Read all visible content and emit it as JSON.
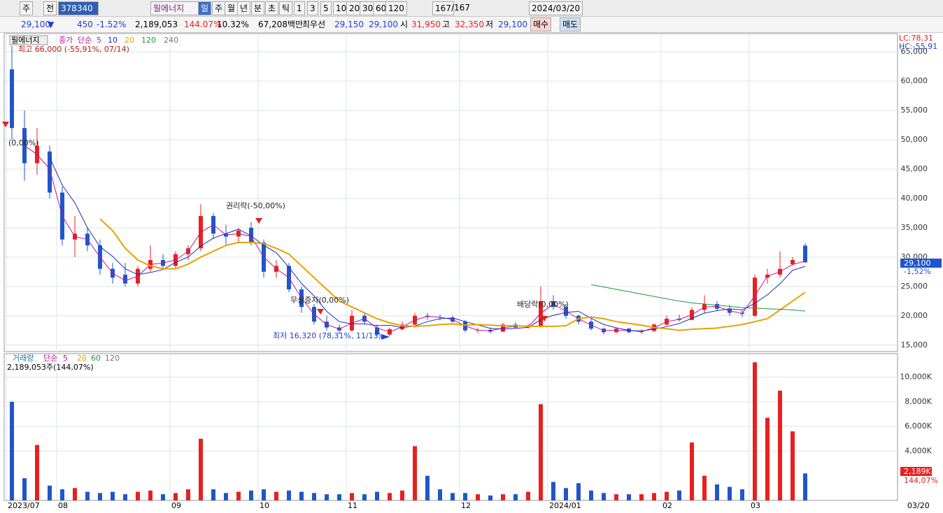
{
  "toolbar": {
    "row1": [
      "주",
      "전",
      "378340",
      "필에너지",
      "일",
      "주",
      "월",
      "년",
      "분",
      "초",
      "틱",
      "1",
      "3",
      "5",
      "10",
      "20",
      "30",
      "60",
      "120",
      "167",
      "/167",
      "2024/03/20"
    ],
    "row2": [
      "29,100",
      "▼",
      "450",
      "-1.52%",
      "2,189,053",
      "144.07%",
      "10.32%",
      "67,208백만",
      "최우선",
      "29,150",
      "29,100",
      "시",
      "31,950",
      "고",
      "32,350",
      "저",
      "29,100"
    ],
    "buttons": [
      "매수",
      "매도"
    ]
  },
  "chart_data": [
    {
      "type": "candlestick",
      "name": "필에너지",
      "legend_prefix": [
        "종가",
        "단순"
      ],
      "legend_extra": "240",
      "categories": [
        "2023/07",
        null,
        null,
        null,
        "08",
        null,
        null,
        null,
        null,
        null,
        null,
        null,
        null,
        "09",
        null,
        null,
        null,
        null,
        null,
        null,
        "10",
        null,
        null,
        null,
        null,
        null,
        null,
        "11",
        null,
        null,
        null,
        null,
        null,
        null,
        null,
        null,
        "12",
        null,
        null,
        null,
        null,
        null,
        null,
        "2024/01",
        null,
        null,
        null,
        null,
        null,
        null,
        null,
        null,
        "02",
        null,
        null,
        null,
        null,
        null,
        null,
        "03",
        null,
        null,
        null,
        null
      ],
      "cursor_date": "03/20",
      "open": [
        62000,
        52000,
        46000,
        48000,
        41000,
        33000,
        34000,
        32000,
        28000,
        27000,
        25500,
        28000,
        29500,
        28500,
        30500,
        31500,
        37000,
        34000,
        33500,
        35000,
        32500,
        27500,
        28500,
        24500,
        21500,
        19000,
        18000,
        17500,
        20000,
        18000,
        16800,
        17700,
        18500,
        20000,
        19800,
        19700,
        19000,
        17500,
        17600,
        17300,
        18500,
        18000,
        18300,
        22500,
        21500,
        20000,
        19000,
        17800,
        17200,
        17800,
        17200,
        17400,
        18500,
        19500,
        19300,
        21000,
        22000,
        21200,
        20500,
        20000,
        26500,
        27000,
        28800,
        31950
      ],
      "high": [
        66000,
        55000,
        52000,
        49000,
        42000,
        37000,
        35000,
        33000,
        29000,
        29000,
        28500,
        32000,
        30500,
        31000,
        32000,
        39000,
        37500,
        35500,
        35000,
        36000,
        33000,
        29500,
        29000,
        25000,
        22000,
        20000,
        18500,
        21000,
        20500,
        18500,
        18000,
        19000,
        20500,
        20500,
        20200,
        20000,
        19300,
        17900,
        18000,
        18800,
        18900,
        18600,
        25000,
        23500,
        22000,
        20200,
        19500,
        18000,
        18000,
        18000,
        17700,
        18700,
        20000,
        20200,
        21500,
        23500,
        22500,
        21800,
        21000,
        27000,
        28000,
        31000,
        30000,
        32350
      ],
      "low": [
        50000,
        43000,
        44000,
        40000,
        32000,
        30000,
        31000,
        27000,
        25500,
        25000,
        25000,
        27500,
        28000,
        28000,
        29500,
        31000,
        33000,
        32000,
        32500,
        32000,
        26500,
        26500,
        24000,
        20500,
        18500,
        17500,
        16900,
        17300,
        18500,
        16320,
        16500,
        17500,
        18000,
        19300,
        19200,
        18800,
        17200,
        17100,
        17000,
        17200,
        17800,
        17800,
        18000,
        21000,
        19500,
        18500,
        17500,
        16800,
        17000,
        17000,
        16900,
        17300,
        18300,
        19000,
        19200,
        20500,
        20800,
        20000,
        19800,
        19800,
        25500,
        26500,
        28500,
        29100
      ],
      "close": [
        52000,
        46000,
        49000,
        41000,
        33000,
        34000,
        32000,
        28000,
        26500,
        25500,
        28000,
        29500,
        28500,
        30500,
        31500,
        37000,
        34000,
        33500,
        34500,
        32500,
        27500,
        28500,
        24500,
        21500,
        19000,
        18000,
        17500,
        20000,
        19000,
        16800,
        17700,
        18500,
        20000,
        19800,
        19700,
        19000,
        17500,
        17600,
        17300,
        18500,
        18000,
        18300,
        22500,
        21500,
        20000,
        19000,
        17800,
        17200,
        17800,
        17200,
        17400,
        18500,
        19500,
        19300,
        21000,
        22000,
        21200,
        20500,
        20300,
        26500,
        27000,
        28000,
        29500,
        29100
      ],
      "up_color": "#e8201e",
      "down_color": "#1f56c9",
      "ma_series": [
        {
          "name": "5",
          "color": "#c0159a",
          "values": [
            null,
            49000,
            47500,
            45000,
            37000,
            33500,
            33000,
            30000,
            27250,
            26000,
            26750,
            28750,
            29000,
            29500,
            31000,
            34250,
            35500,
            33750,
            34000,
            33500,
            30000,
            28000,
            26500,
            23000,
            20250,
            18500,
            17750,
            18750,
            19500,
            17900,
            17250,
            18100,
            19250,
            19900,
            19750,
            19350,
            18250,
            17550,
            17450,
            17900,
            18250,
            18150,
            20400,
            22000,
            20750,
            19500,
            18400,
            17500,
            17500,
            17500,
            17300,
            17950,
            19000,
            19400,
            20150,
            21500,
            21600,
            20850,
            20400,
            23400,
            26750,
            27500,
            28750,
            29300
          ]
        },
        {
          "name": "10",
          "color": "#1c2fb8",
          "values": [
            null,
            null,
            null,
            47000,
            42250,
            39250,
            35000,
            31750,
            30125,
            28000,
            27000,
            27375,
            27875,
            29125,
            30000,
            31875,
            33250,
            34000,
            34750,
            33625,
            32000,
            30750,
            28250,
            25500,
            23375,
            20750,
            19000,
            18625,
            18625,
            18325,
            18375,
            18000,
            18250,
            19000,
            19500,
            19625,
            19000,
            18450,
            17850,
            17725,
            17850,
            18025,
            19325,
            20075,
            20575,
            20750,
            19575,
            18500,
            17950,
            17500,
            17400,
            17725,
            18150,
            18675,
            19575,
            20450,
            20875,
            21175,
            21000,
            22125,
            23575,
            25450,
            27750,
            28400
          ]
        },
        {
          "name": "20",
          "color": "#e8a200",
          "values": [
            null,
            null,
            null,
            null,
            null,
            null,
            null,
            36500,
            34500,
            31500,
            29500,
            28500,
            28000,
            28000,
            28800,
            30000,
            31000,
            32000,
            32500,
            32500,
            32300,
            31500,
            30500,
            28500,
            26500,
            24500,
            22500,
            21500,
            20500,
            19500,
            18800,
            18300,
            18200,
            18300,
            18500,
            18600,
            18400,
            18500,
            18400,
            18300,
            18300,
            18200,
            18200,
            18200,
            18300,
            19500,
            19800,
            19500,
            19000,
            18700,
            18400,
            18000,
            17800,
            17500,
            17700,
            17800,
            17900,
            18200,
            18500,
            19000,
            19500,
            21000,
            22500,
            24000
          ]
        },
        {
          "name": "120",
          "color": "#1a9a3a",
          "values": [
            null,
            null,
            null,
            null,
            null,
            null,
            null,
            null,
            null,
            null,
            null,
            null,
            null,
            null,
            null,
            null,
            null,
            null,
            null,
            null,
            null,
            null,
            null,
            null,
            null,
            null,
            null,
            null,
            null,
            null,
            null,
            null,
            null,
            null,
            null,
            null,
            null,
            null,
            null,
            null,
            null,
            null,
            null,
            null,
            null,
            null,
            25300,
            24900,
            24500,
            24100,
            23700,
            23300,
            22900,
            22500,
            22200,
            22000,
            21800,
            21600,
            21400,
            21300,
            21200,
            21100,
            21000,
            20800
          ]
        }
      ],
      "ylim": [
        13900,
        68100
      ],
      "yticks": [
        {
          "value": 15000,
          "label": "15,000"
        },
        {
          "value": 20000,
          "label": "20,000"
        },
        {
          "value": 25000,
          "label": "25,000"
        },
        {
          "value": 30000,
          "label": "30,000"
        },
        {
          "value": 35000,
          "label": "35,000"
        },
        {
          "value": 40000,
          "label": "40,000"
        },
        {
          "value": 45000,
          "label": "45,000"
        },
        {
          "value": 50000,
          "label": "50,000"
        },
        {
          "value": 55000,
          "label": "55,000"
        },
        {
          "value": 60000,
          "label": "60,000"
        },
        {
          "value": 65000,
          "label": "65,000"
        }
      ],
      "high_label": "최고 66,000 (-55,91%, 07/14)",
      "low_label": "최저 16,320 (78,31%, 11/13)",
      "annotations": [
        "권리락(-50,00%)",
        "무상증자(0,00%)",
        "배당락(0,00%)",
        "(0,00%)"
      ],
      "lc": "LC:78,31",
      "hc": "HC:-55,91",
      "last_price": {
        "value": 29100,
        "label": "29,100"
      },
      "last_change": "-1,52%"
    },
    {
      "type": "bar",
      "title": "거래량",
      "legend": [
        "단순",
        "5",
        "20",
        "60",
        "120"
      ],
      "info": "2,189,053주(144,07%)",
      "values": [
        8000,
        1800,
        4500,
        1200,
        900,
        1000,
        700,
        600,
        700,
        500,
        700,
        800,
        500,
        600,
        900,
        5000,
        900,
        600,
        700,
        800,
        900,
        700,
        800,
        700,
        600,
        500,
        500,
        600,
        500,
        700,
        600,
        800,
        4400,
        2000,
        900,
        600,
        600,
        500,
        400,
        500,
        500,
        700,
        7800,
        1500,
        1000,
        1400,
        800,
        600,
        500,
        500,
        500,
        600,
        700,
        800,
        4700,
        2000,
        1300,
        1100,
        900,
        11200,
        6700,
        8900,
        5600,
        2189
      ],
      "ylim": [
        0,
        11900
      ],
      "yticks": [
        {
          "value": 4000,
          "label": "4,000K"
        },
        {
          "value": 6000,
          "label": "6,000K"
        },
        {
          "value": 8000,
          "label": "8,000K"
        },
        {
          "value": 10000,
          "label": "10,000K"
        }
      ],
      "last_label": "2,189K",
      "last_ratio": "144,07%"
    }
  ]
}
